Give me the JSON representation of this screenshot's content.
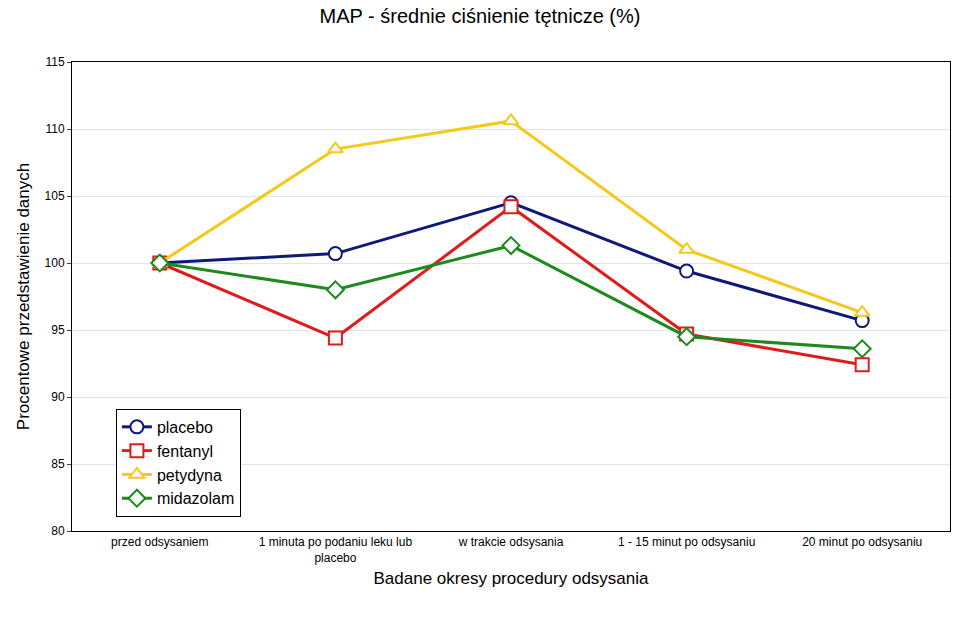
{
  "chart_data": {
    "type": "line",
    "title": "MAP - średnie ciśnienie tętnicze (%)",
    "x_label": "Badane okresy procedury odsysania",
    "y_label": "Procentowe przedstawienie danych",
    "categories": [
      "przed odsysaniem",
      "1 minuta po podaniu leku lub placebo",
      "w trakcie odsysania",
      "1 - 15 minut po odsysaniu",
      "20 minut po odsysaniu"
    ],
    "series": [
      {
        "name": "placebo",
        "color": "#0d1a7a",
        "marker": "circle",
        "values": [
          100,
          100.7,
          104.5,
          99.4,
          95.7
        ]
      },
      {
        "name": "fentanyl",
        "color": "#e01b1b",
        "marker": "square",
        "values": [
          100,
          94.4,
          104.2,
          94.7,
          92.4
        ]
      },
      {
        "name": "petydyna",
        "color": "#f5c81a",
        "marker": "triangle",
        "values": [
          100,
          108.5,
          110.6,
          101.0,
          96.3
        ]
      },
      {
        "name": "midazolam",
        "color": "#1e8a1e",
        "marker": "diamond",
        "values": [
          100,
          98.0,
          101.3,
          94.5,
          93.6
        ]
      }
    ],
    "ylim": [
      80,
      115
    ],
    "yticks": [
      80,
      85,
      90,
      95,
      100,
      105,
      110,
      115
    ],
    "grid": true,
    "legend": "lower left"
  }
}
